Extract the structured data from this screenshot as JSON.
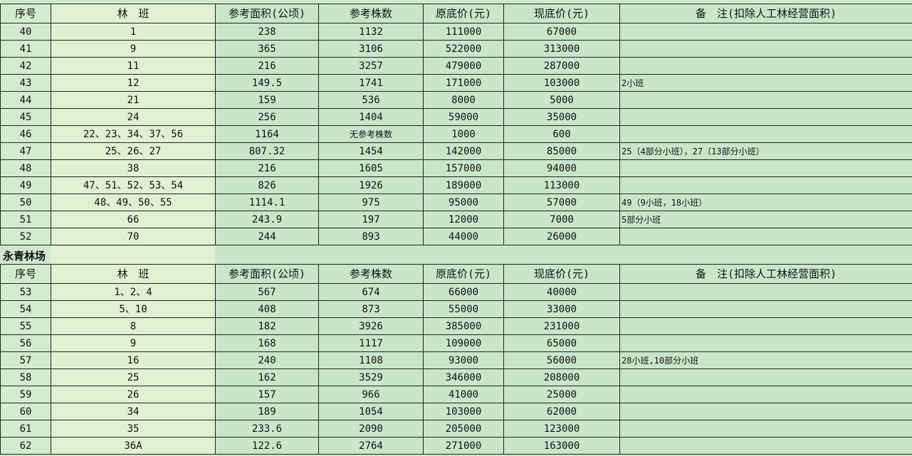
{
  "headers": [
    "序号",
    "林　班",
    "参考面积(公顷)",
    "参考株数",
    "原底价(元)",
    "现底价(元)",
    "备　注(扣除人工林经营面积)"
  ],
  "table1": [
    [
      "40",
      "1",
      "238",
      "1132",
      "111000",
      "67000",
      ""
    ],
    [
      "41",
      "9",
      "365",
      "3106",
      "522000",
      "313000",
      ""
    ],
    [
      "42",
      "11",
      "216",
      "3257",
      "479000",
      "287000",
      ""
    ],
    [
      "43",
      "12",
      "149.5",
      "1741",
      "171000",
      "103000",
      "2小班"
    ],
    [
      "44",
      "21",
      "159",
      "536",
      "8000",
      "5000",
      ""
    ],
    [
      "45",
      "24",
      "256",
      "1404",
      "59000",
      "35000",
      ""
    ],
    [
      "46",
      "22、23、34、37、56",
      "1164",
      "无参考株数",
      "1000",
      "600",
      ""
    ],
    [
      "47",
      "25、26、27",
      "807.32",
      "1454",
      "142000",
      "85000",
      "25（4部分小班），27（13部分小班）"
    ],
    [
      "48",
      "38",
      "216",
      "1605",
      "157000",
      "94000",
      ""
    ],
    [
      "49",
      "47、51、52、53、54",
      "826",
      "1926",
      "189000",
      "113000",
      ""
    ],
    [
      "50",
      "48、49、50、55",
      "1114.1",
      "975",
      "95000",
      "57000",
      "49（9小班，18小班）"
    ],
    [
      "51",
      "66",
      "243.9",
      "197",
      "12000",
      "7000",
      "5部分小班"
    ],
    [
      "52",
      "70",
      "244",
      "893",
      "44000",
      "26000",
      ""
    ]
  ],
  "section_title": "永青林场",
  "table2": [
    [
      "53",
      "1、2、4",
      "567",
      "674",
      "66000",
      "40000",
      ""
    ],
    [
      "54",
      "5、10",
      "408",
      "873",
      "55000",
      "33000",
      ""
    ],
    [
      "55",
      "8",
      "182",
      "3926",
      "385000",
      "231000",
      ""
    ],
    [
      "56",
      "9",
      "168",
      "1117",
      "109000",
      "65000",
      ""
    ],
    [
      "57",
      "16",
      "240",
      "1108",
      "93000",
      "56000",
      "28小班,10部分小班"
    ],
    [
      "58",
      "25",
      "162",
      "3529",
      "346000",
      "208000",
      ""
    ],
    [
      "59",
      "26",
      "157",
      "966",
      "41000",
      "25000",
      ""
    ],
    [
      "60",
      "34",
      "189",
      "1054",
      "103000",
      "62000",
      ""
    ],
    [
      "61",
      "35",
      "233.6",
      "2090",
      "205000",
      "123000",
      ""
    ],
    [
      "62",
      "36A",
      "122.6",
      "2764",
      "271000",
      "163000",
      ""
    ]
  ]
}
